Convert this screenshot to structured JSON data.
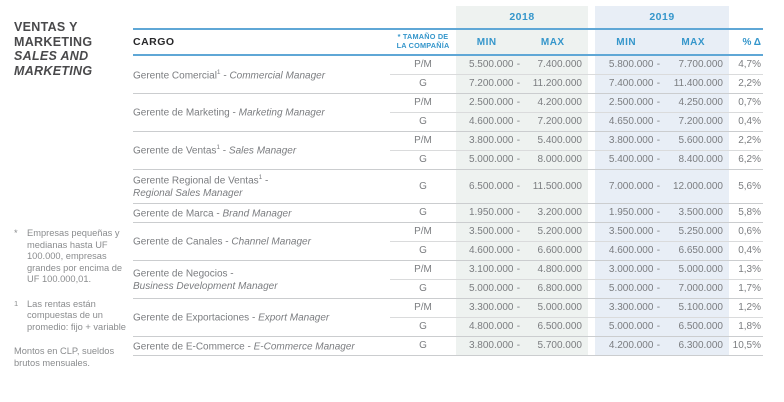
{
  "sidebar": {
    "title_es_line1": "VENTAS Y",
    "title_es_line2": "MARKETING",
    "title_en_line1": "SALES AND",
    "title_en_line2": "MARKETING"
  },
  "footnotes": {
    "asterisk_marker": "*",
    "asterisk_text": "Empresas pequeñas y medianas hasta UF 100.000, empresas grandes por encima de UF 100.000,01.",
    "one_marker": "1",
    "one_text": "Las rentas están compuestas de un promedio: fijo + variable",
    "plain_text": "Montos en CLP, sueldos brutos mensuales."
  },
  "table": {
    "col_cargo": "CARGO",
    "col_size_line1": "* TAMAÑO DE",
    "col_size_line2": "LA COMPAÑÍA",
    "year_2018": "2018",
    "year_2019": "2019",
    "col_min": "MIN",
    "col_max": "MAX",
    "col_delta": "% Δ",
    "dash": "-",
    "colors": {
      "accent_blue": "#3596cb",
      "line_blue": "#5fa7d6",
      "bg_2018": "#eef2f0",
      "bg_2019": "#e8eef6"
    },
    "groups": [
      {
        "title_es": "Gerente Comercial",
        "sup": "1",
        "sep": " - ",
        "title_en": "Commercial Manager",
        "rows": [
          {
            "size": "P/M",
            "y18min": "5.500.000",
            "y18max": "7.400.000",
            "y19min": "5.800.000",
            "y19max": "7.700.000",
            "delta": "4,7%"
          },
          {
            "size": "G",
            "y18min": "7.200.000",
            "y18max": "11.200.000",
            "y19min": "7.400.000",
            "y19max": "11.400.000",
            "delta": "2,2%"
          }
        ]
      },
      {
        "title_es": "Gerente de Marketing",
        "sup": "",
        "sep": " - ",
        "title_en": "Marketing Manager",
        "rows": [
          {
            "size": "P/M",
            "y18min": "2.500.000",
            "y18max": "4.200.000",
            "y19min": "2.500.000",
            "y19max": "4.250.000",
            "delta": "0,7%"
          },
          {
            "size": "G",
            "y18min": "4.600.000",
            "y18max": "7.200.000",
            "y19min": "4.650.000",
            "y19max": "7.200.000",
            "delta": "0,4%"
          }
        ]
      },
      {
        "title_es": "Gerente de Ventas",
        "sup": "1",
        "sep": " - ",
        "title_en": "Sales Manager",
        "rows": [
          {
            "size": "P/M",
            "y18min": "3.800.000",
            "y18max": "5.400.000",
            "y19min": "3.800.000",
            "y19max": "5.600.000",
            "delta": "2,2%"
          },
          {
            "size": "G",
            "y18min": "5.000.000",
            "y18max": "8.000.000",
            "y19min": "5.400.000",
            "y19max": "8.400.000",
            "delta": "6,2%"
          }
        ]
      },
      {
        "title_es": "Gerente Regional de Ventas",
        "sup": "1",
        "sep": " -",
        "title_en": "Regional Sales Manager",
        "rows": [
          {
            "size": "G",
            "y18min": "6.500.000",
            "y18max": "11.500.000",
            "y19min": "7.000.000",
            "y19max": "12.000.000",
            "delta": "5,6%"
          }
        ]
      },
      {
        "title_es": "Gerente de Marca",
        "sup": "",
        "sep": " - ",
        "title_en": "Brand Manager",
        "rows": [
          {
            "size": "G",
            "y18min": "1.950.000",
            "y18max": "3.200.000",
            "y19min": "1.950.000",
            "y19max": "3.500.000",
            "delta": "5,8%"
          }
        ]
      },
      {
        "title_es": "Gerente de Canales",
        "sup": "",
        "sep": " - ",
        "title_en": "Channel Manager",
        "rows": [
          {
            "size": "P/M",
            "y18min": "3.500.000",
            "y18max": "5.200.000",
            "y19min": "3.500.000",
            "y19max": "5.250.000",
            "delta": "0,6%"
          },
          {
            "size": "G",
            "y18min": "4.600.000",
            "y18max": "6.600.000",
            "y19min": "4.600.000",
            "y19max": "6.650.000",
            "delta": "0,4%"
          }
        ]
      },
      {
        "title_es": "Gerente de Negocios",
        "sup": "",
        "sep": " -",
        "title_en": "Business Development Manager",
        "rows": [
          {
            "size": "P/M",
            "y18min": "3.100.000",
            "y18max": "4.800.000",
            "y19min": "3.000.000",
            "y19max": "5.000.000",
            "delta": "1,3%"
          },
          {
            "size": "G",
            "y18min": "5.000.000",
            "y18max": "6.800.000",
            "y19min": "5.000.000",
            "y19max": "7.000.000",
            "delta": "1,7%"
          }
        ]
      },
      {
        "title_es": "Gerente de Exportaciones",
        "sup": "",
        "sep": " - ",
        "title_en": "Export Manager",
        "rows": [
          {
            "size": "P/M",
            "y18min": "3.300.000",
            "y18max": "5.000.000",
            "y19min": "3.300.000",
            "y19max": "5.100.000",
            "delta": "1,2%"
          },
          {
            "size": "G",
            "y18min": "4.800.000",
            "y18max": "6.500.000",
            "y19min": "5.000.000",
            "y19max": "6.500.000",
            "delta": "1,8%"
          }
        ]
      },
      {
        "title_es": "Gerente de E-Commerce",
        "sup": "",
        "sep": " - ",
        "title_en": "E-Commerce Manager",
        "rows": [
          {
            "size": "G",
            "y18min": "3.800.000",
            "y18max": "5.700.000",
            "y19min": "4.200.000",
            "y19max": "6.300.000",
            "delta": "10,5%"
          }
        ]
      }
    ]
  }
}
